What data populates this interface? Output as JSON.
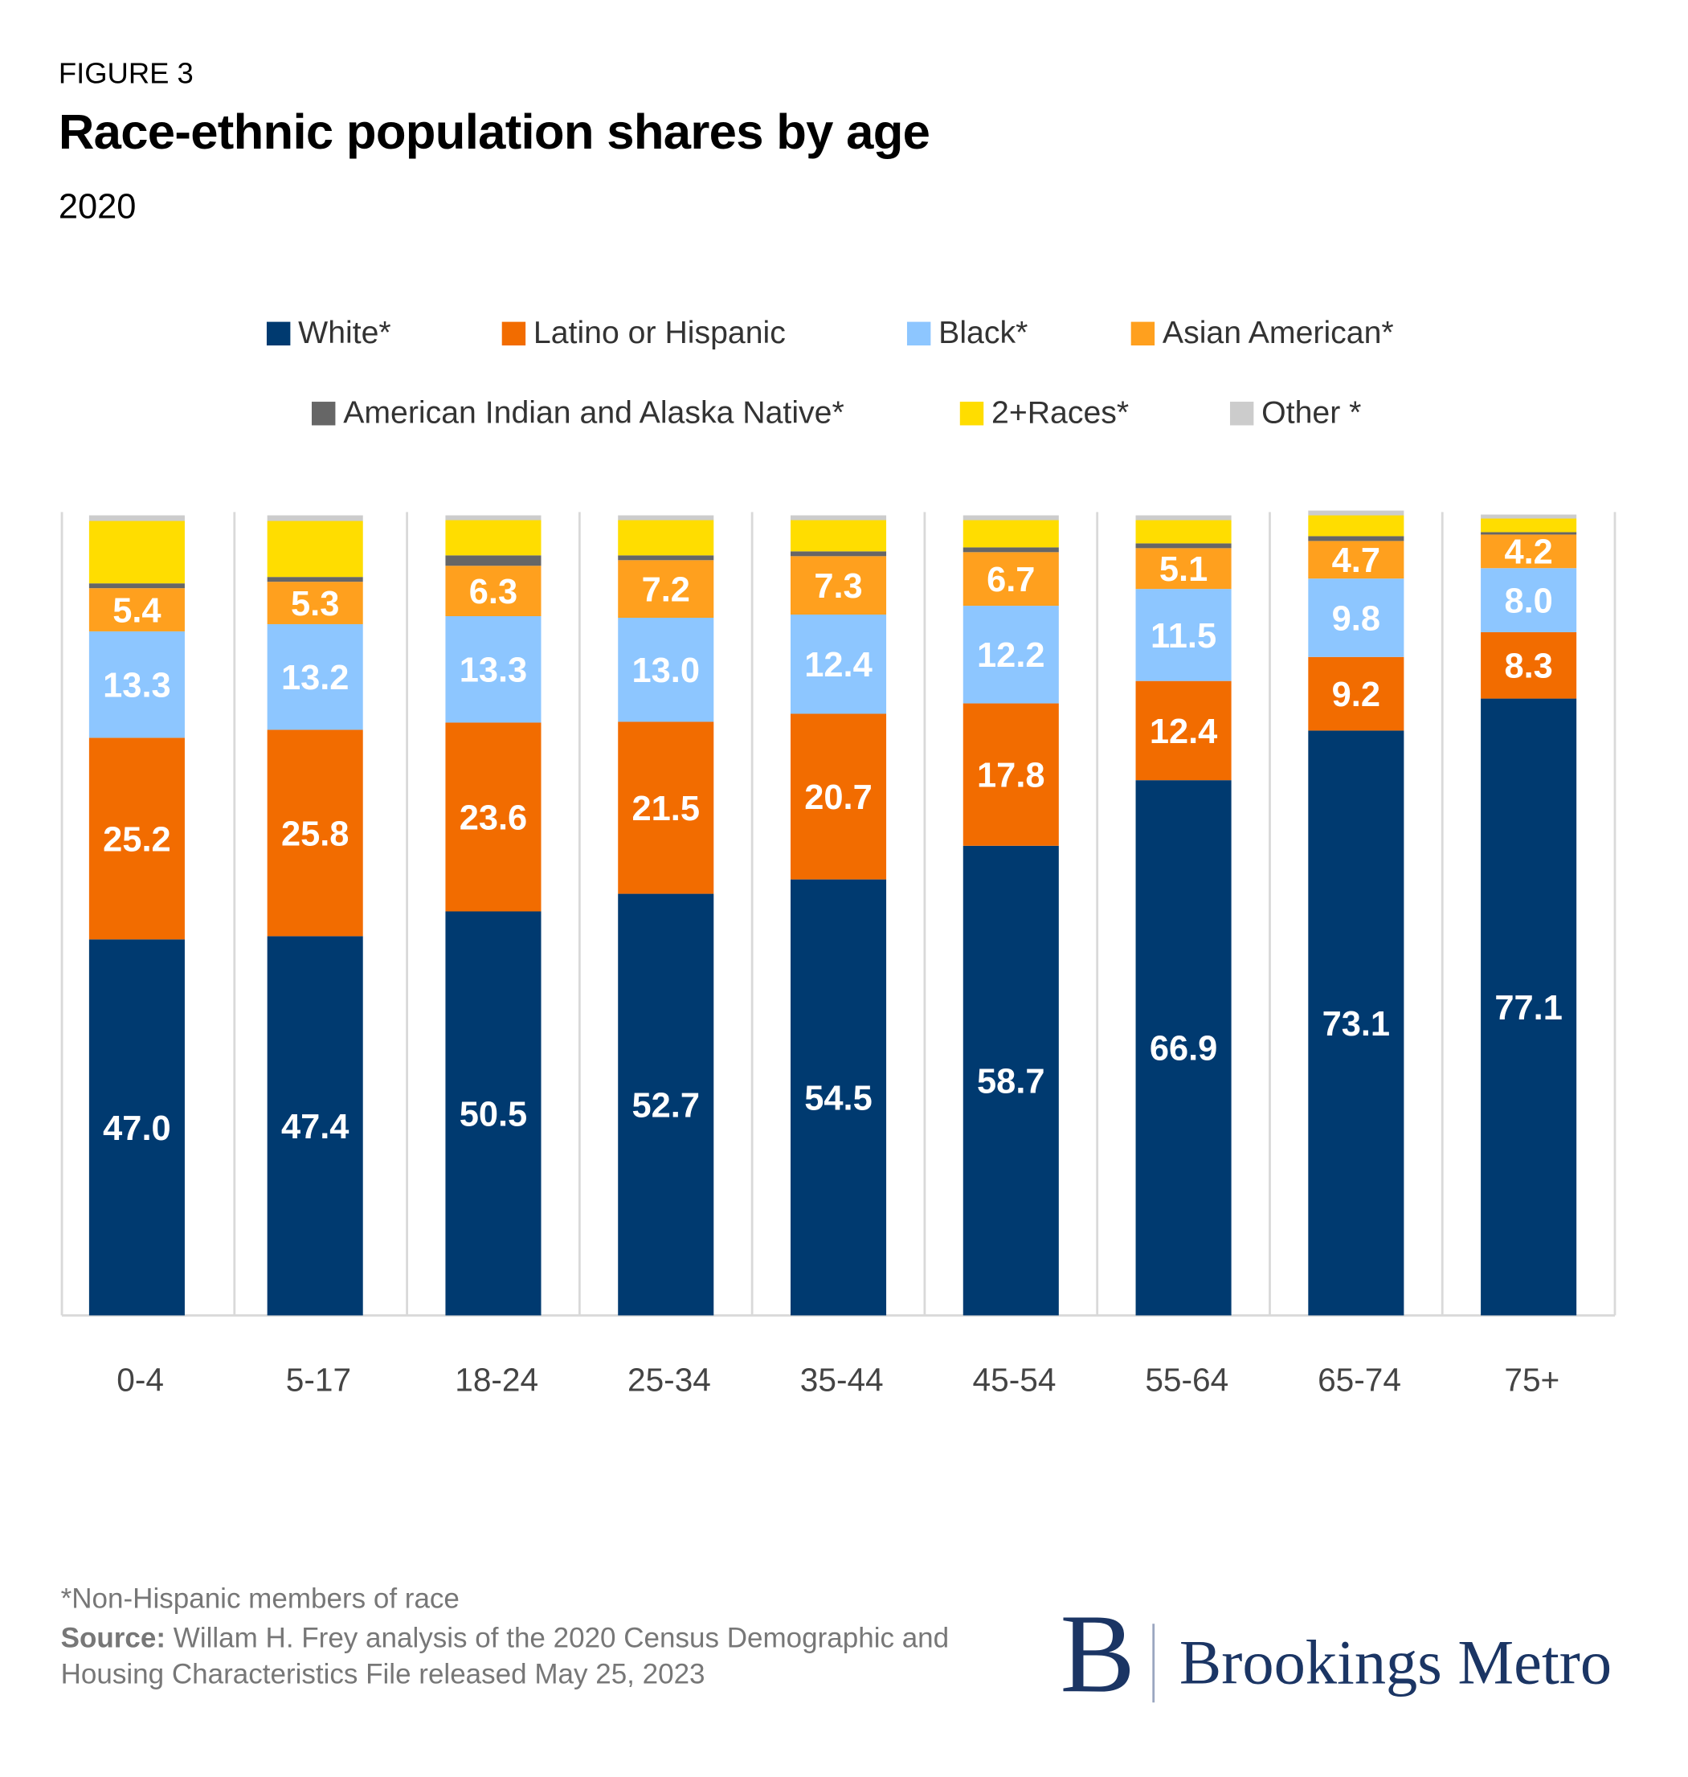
{
  "header": {
    "figure_label": "FIGURE 3",
    "title": "Race-ethnic population shares by age",
    "subtitle": "2020"
  },
  "chart_data": {
    "type": "stacked-bar",
    "title": "Race-ethnic population shares by age",
    "subtitle": "2020",
    "xlabel": "",
    "ylabel": "",
    "ylim": [
      0,
      100
    ],
    "grid": "vertical separators",
    "legend_position": "top",
    "categories": [
      "0-4",
      "5-17",
      "18-24",
      "25-34",
      "35-44",
      "45-54",
      "55-64",
      "65-74",
      "75+"
    ],
    "series": [
      {
        "name": "White*",
        "color": "#003A70",
        "labeled": true,
        "values": [
          47.0,
          47.4,
          50.5,
          52.7,
          54.5,
          58.7,
          66.9,
          73.1,
          77.1
        ]
      },
      {
        "name": "Latino or Hispanic",
        "color": "#F26C00",
        "labeled": true,
        "values": [
          25.2,
          25.8,
          23.6,
          21.5,
          20.7,
          17.8,
          12.4,
          9.2,
          8.3
        ]
      },
      {
        "name": "Black*",
        "color": "#8DC6FF",
        "labeled": true,
        "values": [
          13.3,
          13.2,
          13.3,
          13.0,
          12.4,
          12.2,
          11.5,
          9.8,
          8.0
        ]
      },
      {
        "name": "Asian American*",
        "color": "#FFA01E",
        "labeled": true,
        "values": [
          5.4,
          5.3,
          6.3,
          7.2,
          7.3,
          6.7,
          5.1,
          4.7,
          4.2
        ]
      },
      {
        "name": "American Indian and Alaska Native*",
        "color": "#666666",
        "labeled": false,
        "values": [
          0.6,
          0.6,
          1.3,
          0.6,
          0.6,
          0.6,
          0.6,
          0.6,
          0.3
        ]
      },
      {
        "name": "2+Races*",
        "color": "#FFDD00",
        "labeled": false,
        "values": [
          7.8,
          7.0,
          4.4,
          4.4,
          3.9,
          3.4,
          2.9,
          2.6,
          1.7
        ]
      },
      {
        "name": "Other *",
        "color": "#CCCCCC",
        "labeled": false,
        "values": [
          0.7,
          0.7,
          0.6,
          0.6,
          0.6,
          0.6,
          0.6,
          0.6,
          0.5
        ]
      }
    ]
  },
  "footer": {
    "note": "*Non-Hispanic members of race",
    "source_label": "Source:",
    "source_text": "Willam H. Frey analysis of the 2020 Census Demographic and Housing Characteristics File released May 25, 2023",
    "logo_text": "Brookings Metro",
    "logo_letter": "B"
  }
}
